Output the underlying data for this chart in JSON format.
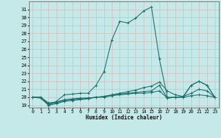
{
  "xlabel": "Humidex (Indice chaleur)",
  "background_color": "#c5e8e8",
  "grid_color": "#aacccc",
  "line_color": "#1a6e6e",
  "xlim": [
    -0.5,
    23.5
  ],
  "ylim": [
    18.7,
    32.0
  ],
  "xticks": [
    0,
    1,
    2,
    3,
    4,
    5,
    6,
    7,
    8,
    9,
    10,
    11,
    12,
    13,
    14,
    15,
    16,
    17,
    18,
    19,
    20,
    21,
    22,
    23
  ],
  "yticks": [
    19,
    20,
    21,
    22,
    23,
    24,
    25,
    26,
    27,
    28,
    29,
    30,
    31
  ],
  "series": [
    [
      20.0,
      19.9,
      19.0,
      19.5,
      20.3,
      20.4,
      20.5,
      20.5,
      21.5,
      23.2,
      27.2,
      29.5,
      29.3,
      29.9,
      30.8,
      31.3,
      24.8,
      20.0,
      20.0,
      20.0,
      21.5,
      22.0,
      21.5,
      20.0
    ],
    [
      20.0,
      20.0,
      19.0,
      19.2,
      19.5,
      19.6,
      19.7,
      19.8,
      20.0,
      20.1,
      20.3,
      20.5,
      20.7,
      20.9,
      21.2,
      21.4,
      21.9,
      20.8,
      20.3,
      20.1,
      21.5,
      22.0,
      21.5,
      20.0
    ],
    [
      20.0,
      20.0,
      19.2,
      19.3,
      19.6,
      19.7,
      19.8,
      19.9,
      20.0,
      20.1,
      20.3,
      20.4,
      20.5,
      20.6,
      20.7,
      20.8,
      21.5,
      19.9,
      20.0,
      20.1,
      20.5,
      21.0,
      20.8,
      20.0
    ],
    [
      20.0,
      20.0,
      19.3,
      19.4,
      19.7,
      19.8,
      19.9,
      19.9,
      20.0,
      20.0,
      20.2,
      20.3,
      20.4,
      20.5,
      20.5,
      20.6,
      20.8,
      19.9,
      20.0,
      20.0,
      20.2,
      20.3,
      20.2,
      20.0
    ]
  ]
}
